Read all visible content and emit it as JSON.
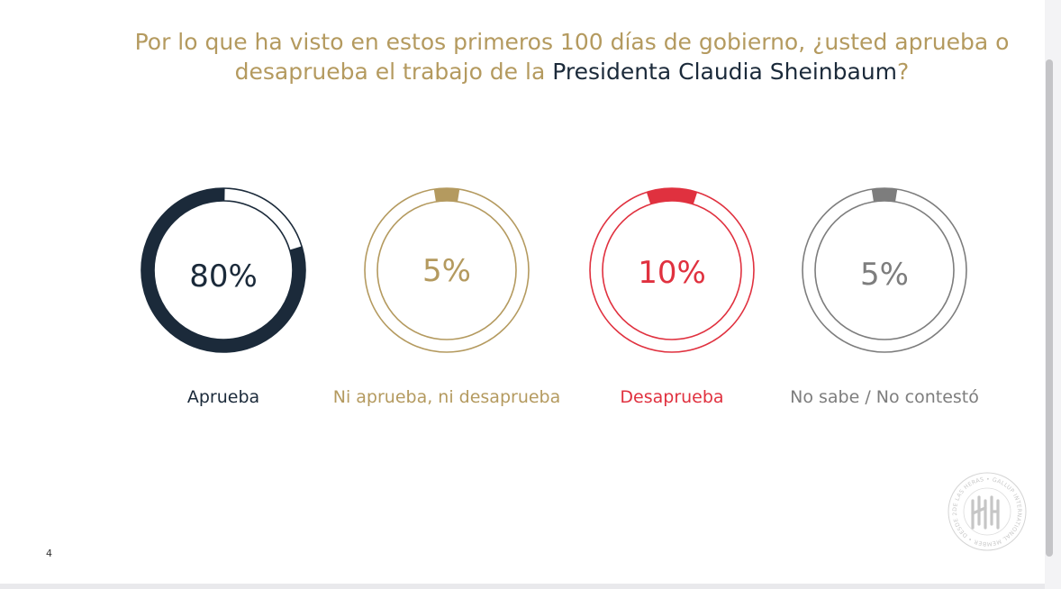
{
  "slide": {
    "title_pre": "Por lo que ha visto en estos primeros 100 días de gobierno, ¿usted aprueba o desaprueba el trabajo de la ",
    "title_highlight": "Presidenta Claudia Sheinbaum",
    "title_post": "?",
    "page_number": "4"
  },
  "seal": {
    "ring_text": "DE LAS HERAS • GALLUP INTERNATIONAL MEMBER • DESDE 2025"
  },
  "colors": {
    "gold": "#b49a5f",
    "navy": "#1b2a3a",
    "red": "#e0313f",
    "gray": "#7d7d7d"
  },
  "chart_data": {
    "type": "pie",
    "title": "Por lo que ha visto en estos primeros 100 días de gobierno, ¿usted aprueba o desaprueba el trabajo de la Presidenta Claudia Sheinbaum?",
    "categories": [
      "Aprueba",
      "Ni aprueba, ni desaprueba",
      "Desaprueba",
      "No sabe / No contestó"
    ],
    "values": [
      80,
      5,
      10,
      5
    ],
    "labels": [
      "80%",
      "5%",
      "10%",
      "5%"
    ],
    "unit": "%",
    "series_colors": [
      "#1b2a3a",
      "#b49a5f",
      "#e0313f",
      "#7d7d7d"
    ]
  }
}
